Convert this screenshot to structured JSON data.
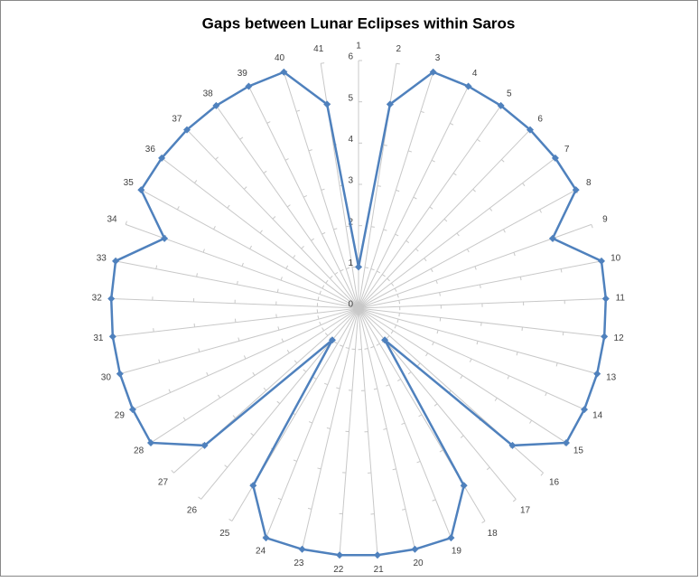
{
  "chart_data": {
    "type": "radar",
    "title": "Gaps between Lunar Eclipses within Saros",
    "categories": [
      "1",
      "2",
      "3",
      "4",
      "5",
      "6",
      "7",
      "8",
      "9",
      "10",
      "11",
      "12",
      "13",
      "14",
      "15",
      "16",
      "17",
      "18",
      "19",
      "20",
      "21",
      "22",
      "23",
      "24",
      "25",
      "26",
      "27",
      "28",
      "29",
      "30",
      "31",
      "32",
      "33",
      "34",
      "35",
      "36",
      "37",
      "38",
      "39",
      "40",
      "41"
    ],
    "values": [
      1,
      5,
      6,
      6,
      6,
      6,
      6,
      6,
      5,
      6,
      6,
      6,
      6,
      6,
      6,
      5,
      1,
      5,
      6,
      6,
      6,
      6,
      6,
      6,
      5,
      1,
      5,
      6,
      6,
      6,
      6,
      6,
      6,
      5,
      6,
      6,
      6,
      6,
      6,
      6,
      5
    ],
    "color": "#4f81bd",
    "ylim": [
      0,
      6
    ],
    "yticks": [
      0,
      1,
      2,
      3,
      4,
      5,
      6
    ]
  }
}
